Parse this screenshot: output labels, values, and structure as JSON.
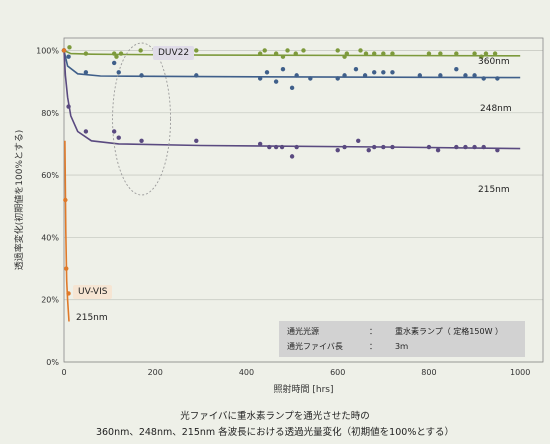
{
  "chart_data": {
    "type": "scatter",
    "ylabel": "透過率変化(初期値を100%とする)",
    "xlabel": "照射時間 [hrs]",
    "xlim": [
      0,
      1050
    ],
    "ylim": [
      0,
      104
    ],
    "xticks": [
      0,
      200,
      400,
      600,
      800,
      1000
    ],
    "yticks": [
      0,
      20,
      40,
      60,
      80,
      100
    ],
    "xtick_labels": [
      "0",
      "200",
      "400",
      "600",
      "800",
      "1000"
    ],
    "ytick_labels": [
      "0%",
      "20%",
      "40%",
      "60%",
      "80%",
      "100%"
    ],
    "grid": "horizontal",
    "series": [
      {
        "name": "360nm",
        "color": "#7d9a3c",
        "points": [
          [
            0,
            100
          ],
          [
            12,
            101
          ],
          [
            48,
            99
          ],
          [
            110,
            99
          ],
          [
            115,
            98
          ],
          [
            125,
            99
          ],
          [
            168,
            100
          ],
          [
            290,
            100
          ],
          [
            430,
            99
          ],
          [
            440,
            100
          ],
          [
            465,
            99
          ],
          [
            480,
            98
          ],
          [
            490,
            100
          ],
          [
            508,
            99
          ],
          [
            525,
            100
          ],
          [
            600,
            100
          ],
          [
            615,
            98
          ],
          [
            620,
            99
          ],
          [
            650,
            100
          ],
          [
            662,
            99
          ],
          [
            680,
            99
          ],
          [
            700,
            99
          ],
          [
            720,
            99
          ],
          [
            800,
            99
          ],
          [
            825,
            99
          ],
          [
            860,
            99
          ],
          [
            900,
            99
          ],
          [
            915,
            98
          ],
          [
            925,
            99
          ],
          [
            945,
            99
          ]
        ],
        "fit": [
          [
            0,
            100
          ],
          [
            15,
            99
          ],
          [
            60,
            98.8
          ],
          [
            300,
            98.5
          ],
          [
            1000,
            98.3
          ]
        ]
      },
      {
        "name": "248nm",
        "color": "#3f5f8a",
        "points": [
          [
            0,
            100
          ],
          [
            10,
            98
          ],
          [
            48,
            93
          ],
          [
            110,
            96
          ],
          [
            120,
            93
          ],
          [
            170,
            92
          ],
          [
            290,
            92
          ],
          [
            430,
            91
          ],
          [
            445,
            93
          ],
          [
            465,
            90
          ],
          [
            480,
            94
          ],
          [
            500,
            88
          ],
          [
            510,
            92
          ],
          [
            540,
            91
          ],
          [
            600,
            91
          ],
          [
            615,
            92
          ],
          [
            640,
            94
          ],
          [
            660,
            92
          ],
          [
            680,
            93
          ],
          [
            700,
            93
          ],
          [
            720,
            93
          ],
          [
            780,
            92
          ],
          [
            825,
            92
          ],
          [
            860,
            94
          ],
          [
            880,
            92
          ],
          [
            900,
            92
          ],
          [
            920,
            91
          ],
          [
            950,
            91
          ]
        ],
        "fit": [
          [
            0,
            100
          ],
          [
            8,
            95
          ],
          [
            30,
            92.5
          ],
          [
            80,
            91.8
          ],
          [
            300,
            91.6
          ],
          [
            1000,
            91.3
          ]
        ]
      },
      {
        "name": "215nm",
        "color": "#5a4a80",
        "points": [
          [
            0,
            100
          ],
          [
            10,
            82
          ],
          [
            48,
            74
          ],
          [
            110,
            74
          ],
          [
            120,
            72
          ],
          [
            170,
            71
          ],
          [
            290,
            71
          ],
          [
            430,
            70
          ],
          [
            450,
            69
          ],
          [
            465,
            69
          ],
          [
            478,
            69
          ],
          [
            500,
            66
          ],
          [
            510,
            69
          ],
          [
            600,
            68
          ],
          [
            615,
            69
          ],
          [
            645,
            71
          ],
          [
            668,
            68
          ],
          [
            680,
            69
          ],
          [
            700,
            69
          ],
          [
            720,
            69
          ],
          [
            800,
            69
          ],
          [
            820,
            68
          ],
          [
            860,
            69
          ],
          [
            880,
            69
          ],
          [
            900,
            69
          ],
          [
            920,
            69
          ],
          [
            950,
            68
          ]
        ],
        "fit": [
          [
            0,
            100
          ],
          [
            3,
            92
          ],
          [
            8,
            85
          ],
          [
            15,
            79
          ],
          [
            30,
            74
          ],
          [
            60,
            71
          ],
          [
            120,
            70
          ],
          [
            300,
            69.5
          ],
          [
            700,
            69
          ],
          [
            1000,
            68.5
          ]
        ]
      },
      {
        "name": "UV-VIS 215nm",
        "color": "#e07a2a",
        "points": [
          [
            0,
            100
          ],
          [
            3,
            52
          ],
          [
            5,
            30
          ],
          [
            10,
            22
          ]
        ],
        "fit": [
          [
            2,
            71
          ],
          [
            3,
            55
          ],
          [
            4,
            42
          ],
          [
            5,
            33
          ],
          [
            6,
            26
          ],
          [
            8,
            20
          ],
          [
            11,
            13
          ]
        ]
      }
    ],
    "annotations": {
      "label_360": "360nm",
      "label_248": "248nm",
      "label_215": "215nm",
      "duv_tag": "DUV22",
      "uvvis_tag": "UV-VIS",
      "uvvis_wavelength": "215nm"
    }
  },
  "info": {
    "source_label": "通光光源",
    "source_colon": "：",
    "source_value": "重水素ランプ（ 定格150W ）",
    "fiber_label": "通光ファイバ長",
    "fiber_colon": "：",
    "fiber_value": "3ｍ"
  },
  "caption": {
    "line1": "光ファイバに重水素ランプを通光させた時の",
    "line2": "360nm、248nm、215nm 各波長における透過光量変化（初期値を100%とする）"
  }
}
